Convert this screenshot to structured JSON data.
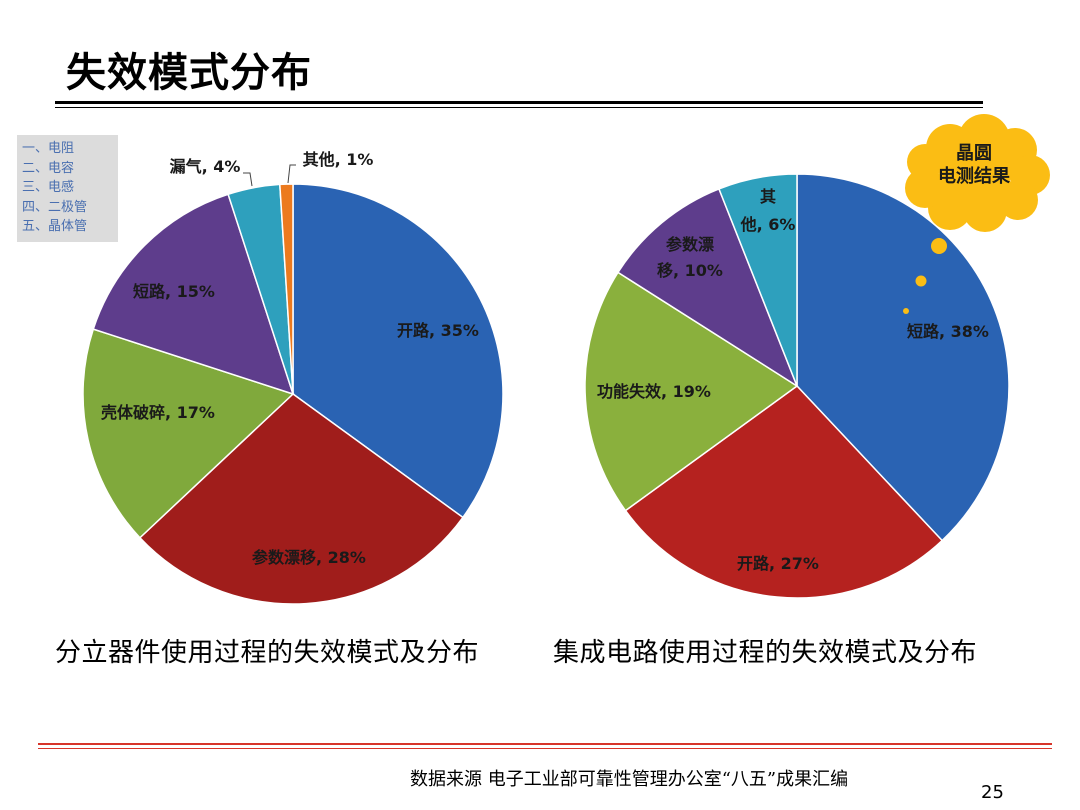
{
  "slide": {
    "title": "失效模式分布",
    "legend": [
      "一、电阻",
      "二、电容",
      "三、电感",
      "四、二极管",
      "五、晶体管"
    ],
    "captions": [
      "分立器件使用过程的失效模式及分布",
      "集成电路使用过程的失效模式及分布"
    ],
    "cloud_lines": [
      "晶圆",
      "电测结果"
    ],
    "source": "数据来源  电子工业部可靠性管理办公室“八五”成果汇编",
    "page_number": "25"
  },
  "chart_data": [
    {
      "type": "pie",
      "start": "12 o'clock, clockwise",
      "slices": [
        {
          "label": "开路, 35%",
          "value": 35,
          "color": "#2a63b3"
        },
        {
          "label": "参数漂移, 28%",
          "value": 28,
          "color": "#a01d1b"
        },
        {
          "label": "壳体破碎, 17%",
          "value": 17,
          "color": "#80a93c"
        },
        {
          "label": "短路, 15%",
          "value": 15,
          "color": "#5e3d8c"
        },
        {
          "label": "漏气, 4%",
          "value": 4,
          "color": "#2ea0bd"
        },
        {
          "label": "其他, 1%",
          "value": 1,
          "color": "#ec7a1e"
        }
      ]
    },
    {
      "type": "pie",
      "start": "12 o'clock, clockwise",
      "slices": [
        {
          "label": "短路, 38%",
          "value": 38,
          "color": "#2a63b3"
        },
        {
          "label": "开路, 27%",
          "value": 27,
          "color": "#b5221f"
        },
        {
          "label": "功能失效, 19%",
          "value": 19,
          "color": "#8ab03d"
        },
        {
          "label": "参数漂移, 10%",
          "value": 10,
          "color": "#5e3d8c"
        },
        {
          "label": "其他, 6%",
          "value": 6,
          "color": "#2ea0bd"
        }
      ]
    }
  ],
  "colors": {
    "title_rule": "#000000",
    "footer_rule": "#d7352a",
    "cloud": "#fbbd14",
    "legend_text": "#4a6fb0"
  }
}
